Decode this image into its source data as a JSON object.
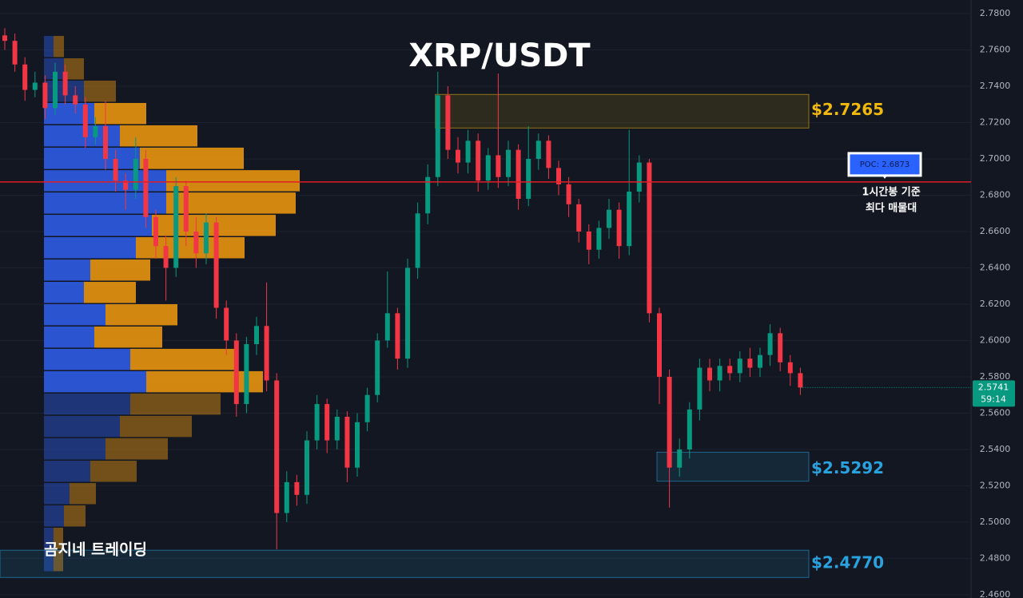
{
  "chart_data": {
    "type": "candlestick",
    "title": "XRP/USDT",
    "watermark": "곰지네 트레이딩",
    "ylim": [
      2.4582,
      2.7875
    ],
    "yticks": [
      {
        "value": 2.46,
        "label": "2.4600"
      },
      {
        "value": 2.48,
        "label": "2.4800"
      },
      {
        "value": 2.5,
        "label": "2.5000"
      },
      {
        "value": 2.52,
        "label": "2.5200"
      },
      {
        "value": 2.54,
        "label": "2.5400"
      },
      {
        "value": 2.56,
        "label": "2.5600"
      },
      {
        "value": 2.58,
        "label": "2.5800"
      },
      {
        "value": 2.6,
        "label": "2.6000"
      },
      {
        "value": 2.62,
        "label": "2.6200"
      },
      {
        "value": 2.64,
        "label": "2.6400"
      },
      {
        "value": 2.66,
        "label": "2.6600"
      },
      {
        "value": 2.68,
        "label": "2.6800"
      },
      {
        "value": 2.7,
        "label": "2.7000"
      },
      {
        "value": 2.72,
        "label": "2.7200"
      },
      {
        "value": 2.74,
        "label": "2.7400"
      },
      {
        "value": 2.76,
        "label": "2.7600"
      },
      {
        "value": 2.78,
        "label": "2.7800"
      }
    ],
    "up_color": "#089981",
    "down_color": "#f23645",
    "open": [
      2.768,
      2.765,
      2.752,
      2.738,
      2.742,
      2.728,
      2.748,
      2.735,
      2.73,
      2.712,
      2.718,
      2.7,
      2.688,
      2.683,
      2.7,
      2.668,
      2.652,
      2.64,
      2.685,
      2.66,
      2.648,
      2.665,
      2.618,
      2.6,
      2.565,
      2.598,
      2.608,
      2.578,
      2.505,
      2.522,
      2.515,
      2.545,
      2.565,
      2.545,
      2.558,
      2.53,
      2.555,
      2.57,
      2.6,
      2.615,
      2.59,
      2.64,
      2.67,
      2.69,
      2.735,
      2.705,
      2.698,
      2.71,
      2.688,
      2.702,
      2.69,
      2.705,
      2.678,
      2.7,
      2.71,
      2.695,
      2.686,
      2.675,
      2.66,
      2.65,
      2.662,
      2.672,
      2.652,
      2.682,
      2.698,
      2.615,
      2.58,
      2.53,
      2.54,
      2.562,
      2.585,
      2.578,
      2.586,
      2.582,
      2.59,
      2.585,
      2.592,
      2.604,
      2.588,
      2.582
    ],
    "high": [
      2.772,
      2.769,
      2.756,
      2.748,
      2.746,
      2.753,
      2.752,
      2.74,
      2.734,
      2.723,
      2.732,
      2.705,
      2.692,
      2.712,
      2.705,
      2.672,
      2.658,
      2.69,
      2.688,
      2.668,
      2.67,
      2.668,
      2.622,
      2.604,
      2.602,
      2.613,
      2.632,
      2.582,
      2.528,
      2.526,
      2.55,
      2.57,
      2.568,
      2.562,
      2.561,
      2.56,
      2.574,
      2.604,
      2.638,
      2.618,
      2.645,
      2.676,
      2.697,
      2.748,
      2.74,
      2.712,
      2.716,
      2.714,
      2.706,
      2.747,
      2.71,
      2.708,
      2.718,
      2.714,
      2.713,
      2.699,
      2.69,
      2.678,
      2.664,
      2.666,
      2.678,
      2.676,
      2.716,
      2.702,
      2.7,
      2.618,
      2.584,
      2.546,
      2.566,
      2.59,
      2.59,
      2.59,
      2.59,
      2.594,
      2.596,
      2.596,
      2.609,
      2.607,
      2.592,
      2.585
    ],
    "low": [
      2.76,
      2.748,
      2.732,
      2.734,
      2.722,
      2.724,
      2.73,
      2.725,
      2.706,
      2.708,
      2.694,
      2.682,
      2.672,
      2.678,
      2.662,
      2.645,
      2.622,
      2.635,
      2.652,
      2.64,
      2.642,
      2.612,
      2.592,
      2.558,
      2.56,
      2.592,
      2.572,
      2.485,
      2.5,
      2.509,
      2.51,
      2.54,
      2.538,
      2.54,
      2.522,
      2.525,
      2.55,
      2.566,
      2.596,
      2.584,
      2.585,
      2.634,
      2.664,
      2.685,
      2.7,
      2.692,
      2.692,
      2.682,
      2.683,
      2.684,
      2.685,
      2.672,
      2.674,
      2.694,
      2.689,
      2.68,
      2.668,
      2.654,
      2.642,
      2.645,
      2.656,
      2.645,
      2.647,
      2.676,
      2.61,
      2.565,
      2.508,
      2.525,
      2.535,
      2.556,
      2.572,
      2.572,
      2.578,
      2.577,
      2.58,
      2.58,
      2.586,
      2.583,
      2.575,
      2.57
    ],
    "close": [
      2.765,
      2.752,
      2.738,
      2.742,
      2.728,
      2.748,
      2.735,
      2.73,
      2.712,
      2.718,
      2.7,
      2.688,
      2.683,
      2.7,
      2.668,
      2.652,
      2.64,
      2.685,
      2.66,
      2.648,
      2.665,
      2.618,
      2.6,
      2.565,
      2.598,
      2.608,
      2.578,
      2.505,
      2.522,
      2.515,
      2.545,
      2.565,
      2.545,
      2.558,
      2.53,
      2.555,
      2.57,
      2.6,
      2.615,
      2.59,
      2.64,
      2.67,
      2.69,
      2.735,
      2.705,
      2.698,
      2.71,
      2.688,
      2.702,
      2.69,
      2.705,
      2.678,
      2.7,
      2.71,
      2.695,
      2.686,
      2.675,
      2.66,
      2.65,
      2.662,
      2.672,
      2.652,
      2.682,
      2.698,
      2.615,
      2.58,
      2.53,
      2.54,
      2.562,
      2.585,
      2.578,
      2.586,
      2.582,
      2.59,
      2.585,
      2.592,
      2.604,
      2.588,
      2.582,
      2.5741
    ],
    "volume_profile": {
      "buy_color": "#2d5be3",
      "sell_color": "#e8940f",
      "bins": [
        2.7677,
        2.7554,
        2.7431,
        2.7308,
        2.7185,
        2.7062,
        2.6938,
        2.6815,
        2.6692,
        2.6569,
        2.6446,
        2.6323,
        2.62,
        2.6077,
        2.5954,
        2.5831,
        2.5708,
        2.5585,
        2.5462,
        2.5338,
        2.5215,
        2.5092,
        2.4969,
        2.4846,
        2.4723
      ],
      "buy": [
        12,
        25,
        50,
        63,
        95,
        120,
        153,
        153,
        135,
        115,
        58,
        50,
        77,
        63,
        108,
        128,
        108,
        95,
        77,
        58,
        32,
        25,
        12,
        12
      ],
      "sell": [
        13,
        25,
        40,
        65,
        97,
        130,
        167,
        162,
        155,
        136,
        75,
        65,
        90,
        85,
        133,
        146,
        113,
        90,
        78,
        58,
        33,
        27,
        12,
        12
      ]
    },
    "poc": {
      "value": 2.6873,
      "label": "POC: 2.6873",
      "color": "#e01e26",
      "note": [
        "1시간봉 기준",
        "최다 매물대"
      ]
    },
    "zones": [
      {
        "label": "$2.7265",
        "value": 2.7265,
        "top": 2.7355,
        "bottom": 2.717,
        "start": 43,
        "color": "#f0b90b"
      },
      {
        "label": "$2.5292",
        "value": 2.5292,
        "top": 2.5385,
        "bottom": 2.5225,
        "start": 65,
        "color": "#29a3e0"
      },
      {
        "label": "$2.4770",
        "value": 2.477,
        "top": 2.4845,
        "bottom": 2.4695,
        "start": 0,
        "color": "#29a3e0"
      }
    ],
    "last_price": {
      "value": 2.5741,
      "label": "2.5741",
      "countdown": "59:14",
      "color": "#089981"
    }
  }
}
